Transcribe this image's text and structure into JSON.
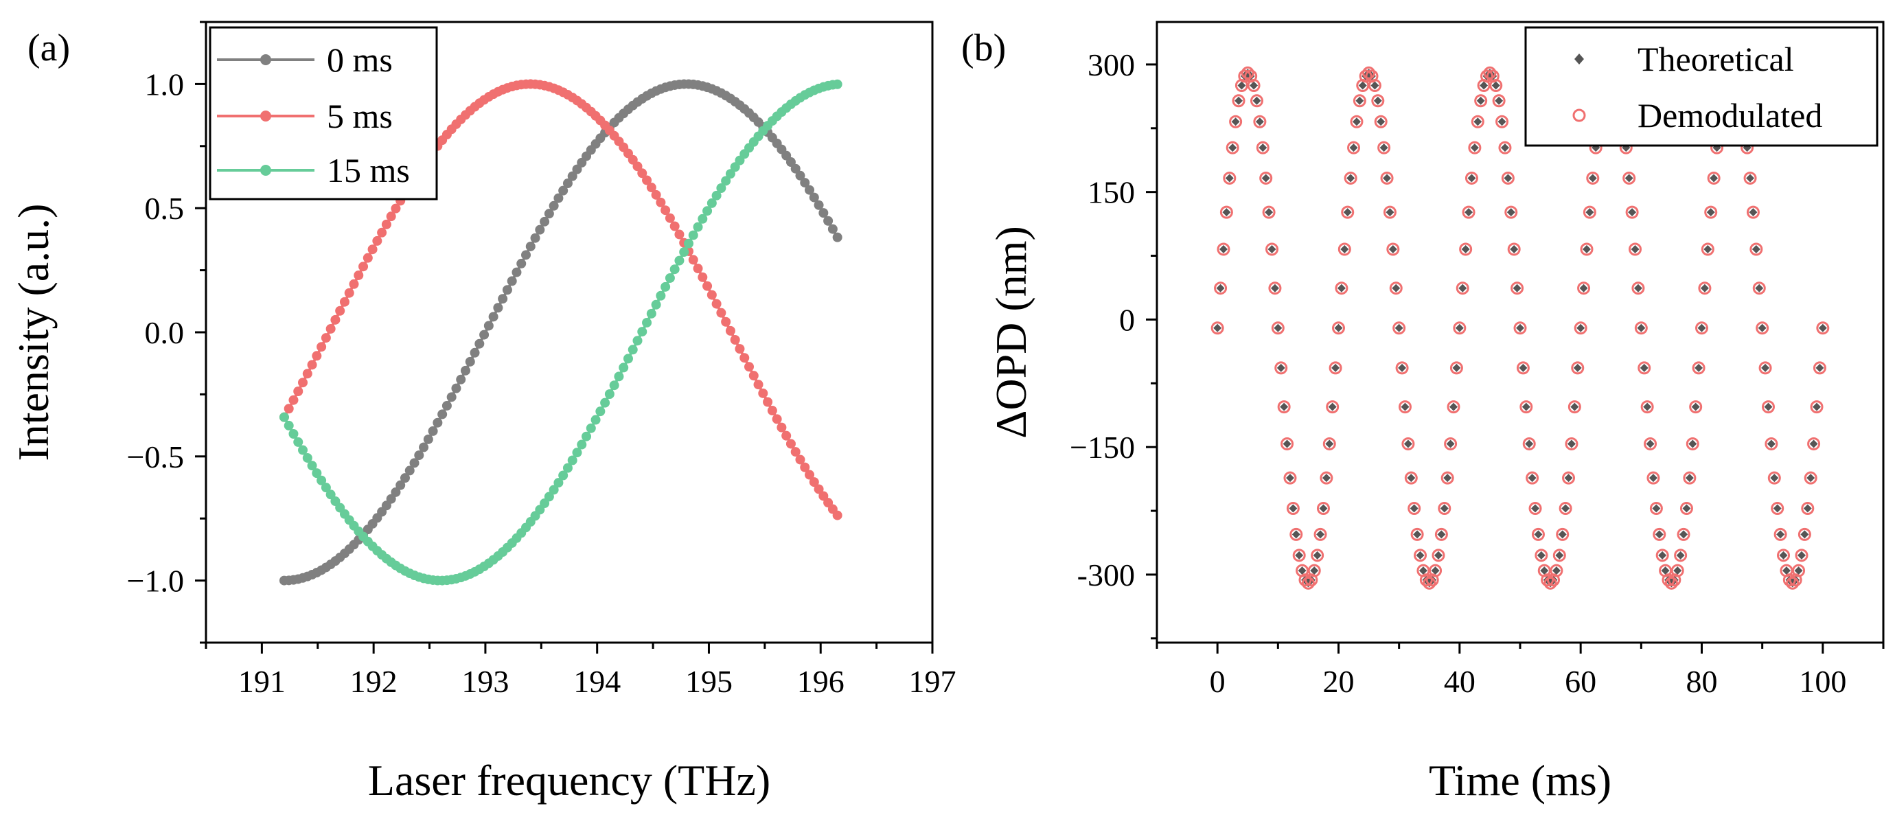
{
  "chart_data": [
    {
      "type": "line",
      "panel_label": "(a)",
      "xlabel": "Laser frequency (THz)",
      "ylabel": "Intensity (a.u.)",
      "xlim": [
        190.5,
        197
      ],
      "ylim": [
        -1.25,
        1.25
      ],
      "xticks": [
        191,
        192,
        193,
        194,
        195,
        196,
        197
      ],
      "xtick_labels": [
        "191",
        "192",
        "193",
        "194",
        "195",
        "196",
        "197"
      ],
      "yticks": [
        -1.0,
        -0.5,
        0.0,
        0.5,
        1.0
      ],
      "ytick_labels": [
        "−1.0",
        "−0.5",
        "0.0",
        "0.5",
        "1.0"
      ],
      "legend_position": "top-left",
      "x_range": [
        191.2,
        196.15
      ],
      "sample_count": 120,
      "series": [
        {
          "name": "0 ms",
          "color": "#808080",
          "marker": "circle-line",
          "model": "sine",
          "amplitude": 1.0,
          "period_thz": 7.2,
          "phase_x": 191.2,
          "start_value": -1.0,
          "end_value": 0.41,
          "peak_x": 194.8,
          "peak_value": 1.0
        },
        {
          "name": "5 ms",
          "color": "#F07070",
          "marker": "circle-line",
          "model": "sine",
          "amplitude": 1.0,
          "period_thz": 7.2,
          "phase_x": 191.6,
          "start_value": -0.29,
          "end_value": -0.67,
          "peak_x": 193.4,
          "peak_value": 1.0
        },
        {
          "name": "15 ms",
          "color": "#66CC99",
          "marker": "circle-line",
          "model": "sine",
          "amplitude": 1.0,
          "period_thz": 7.2,
          "phase_x": 192.6,
          "start_value": -0.43,
          "end_value": 0.99,
          "trough_x": 192.6,
          "trough_value": -1.0
        }
      ]
    },
    {
      "type": "scatter",
      "panel_label": "(b)",
      "xlabel": "Time (ms)",
      "ylabel": "ΔOPD (nm)",
      "xlim": [
        -10,
        110
      ],
      "ylim": [
        -380,
        350
      ],
      "xticks": [
        0,
        20,
        40,
        60,
        80,
        100
      ],
      "xtick_labels": [
        "0",
        "20",
        "40",
        "60",
        "80",
        "100"
      ],
      "yticks": [
        -300,
        -150,
        0,
        150,
        300
      ],
      "ytick_labels": [
        "-300",
        "−150",
        "0",
        "150",
        "300"
      ],
      "legend_position": "top-right",
      "x_range": [
        0,
        100
      ],
      "sample_count": 201,
      "series": [
        {
          "name": "Theoretical",
          "color": "#555555",
          "marker": "filled-diamond",
          "model": "sine",
          "amplitude_nm": 300,
          "period_ms": 20,
          "phase_ms": 0,
          "offset_nm": -10
        },
        {
          "name": "Demodulated",
          "color": "#F07070",
          "marker": "open-circle",
          "model": "sine",
          "amplitude_nm": 300,
          "period_ms": 20,
          "phase_ms": 0,
          "offset_nm": -10
        }
      ]
    }
  ]
}
